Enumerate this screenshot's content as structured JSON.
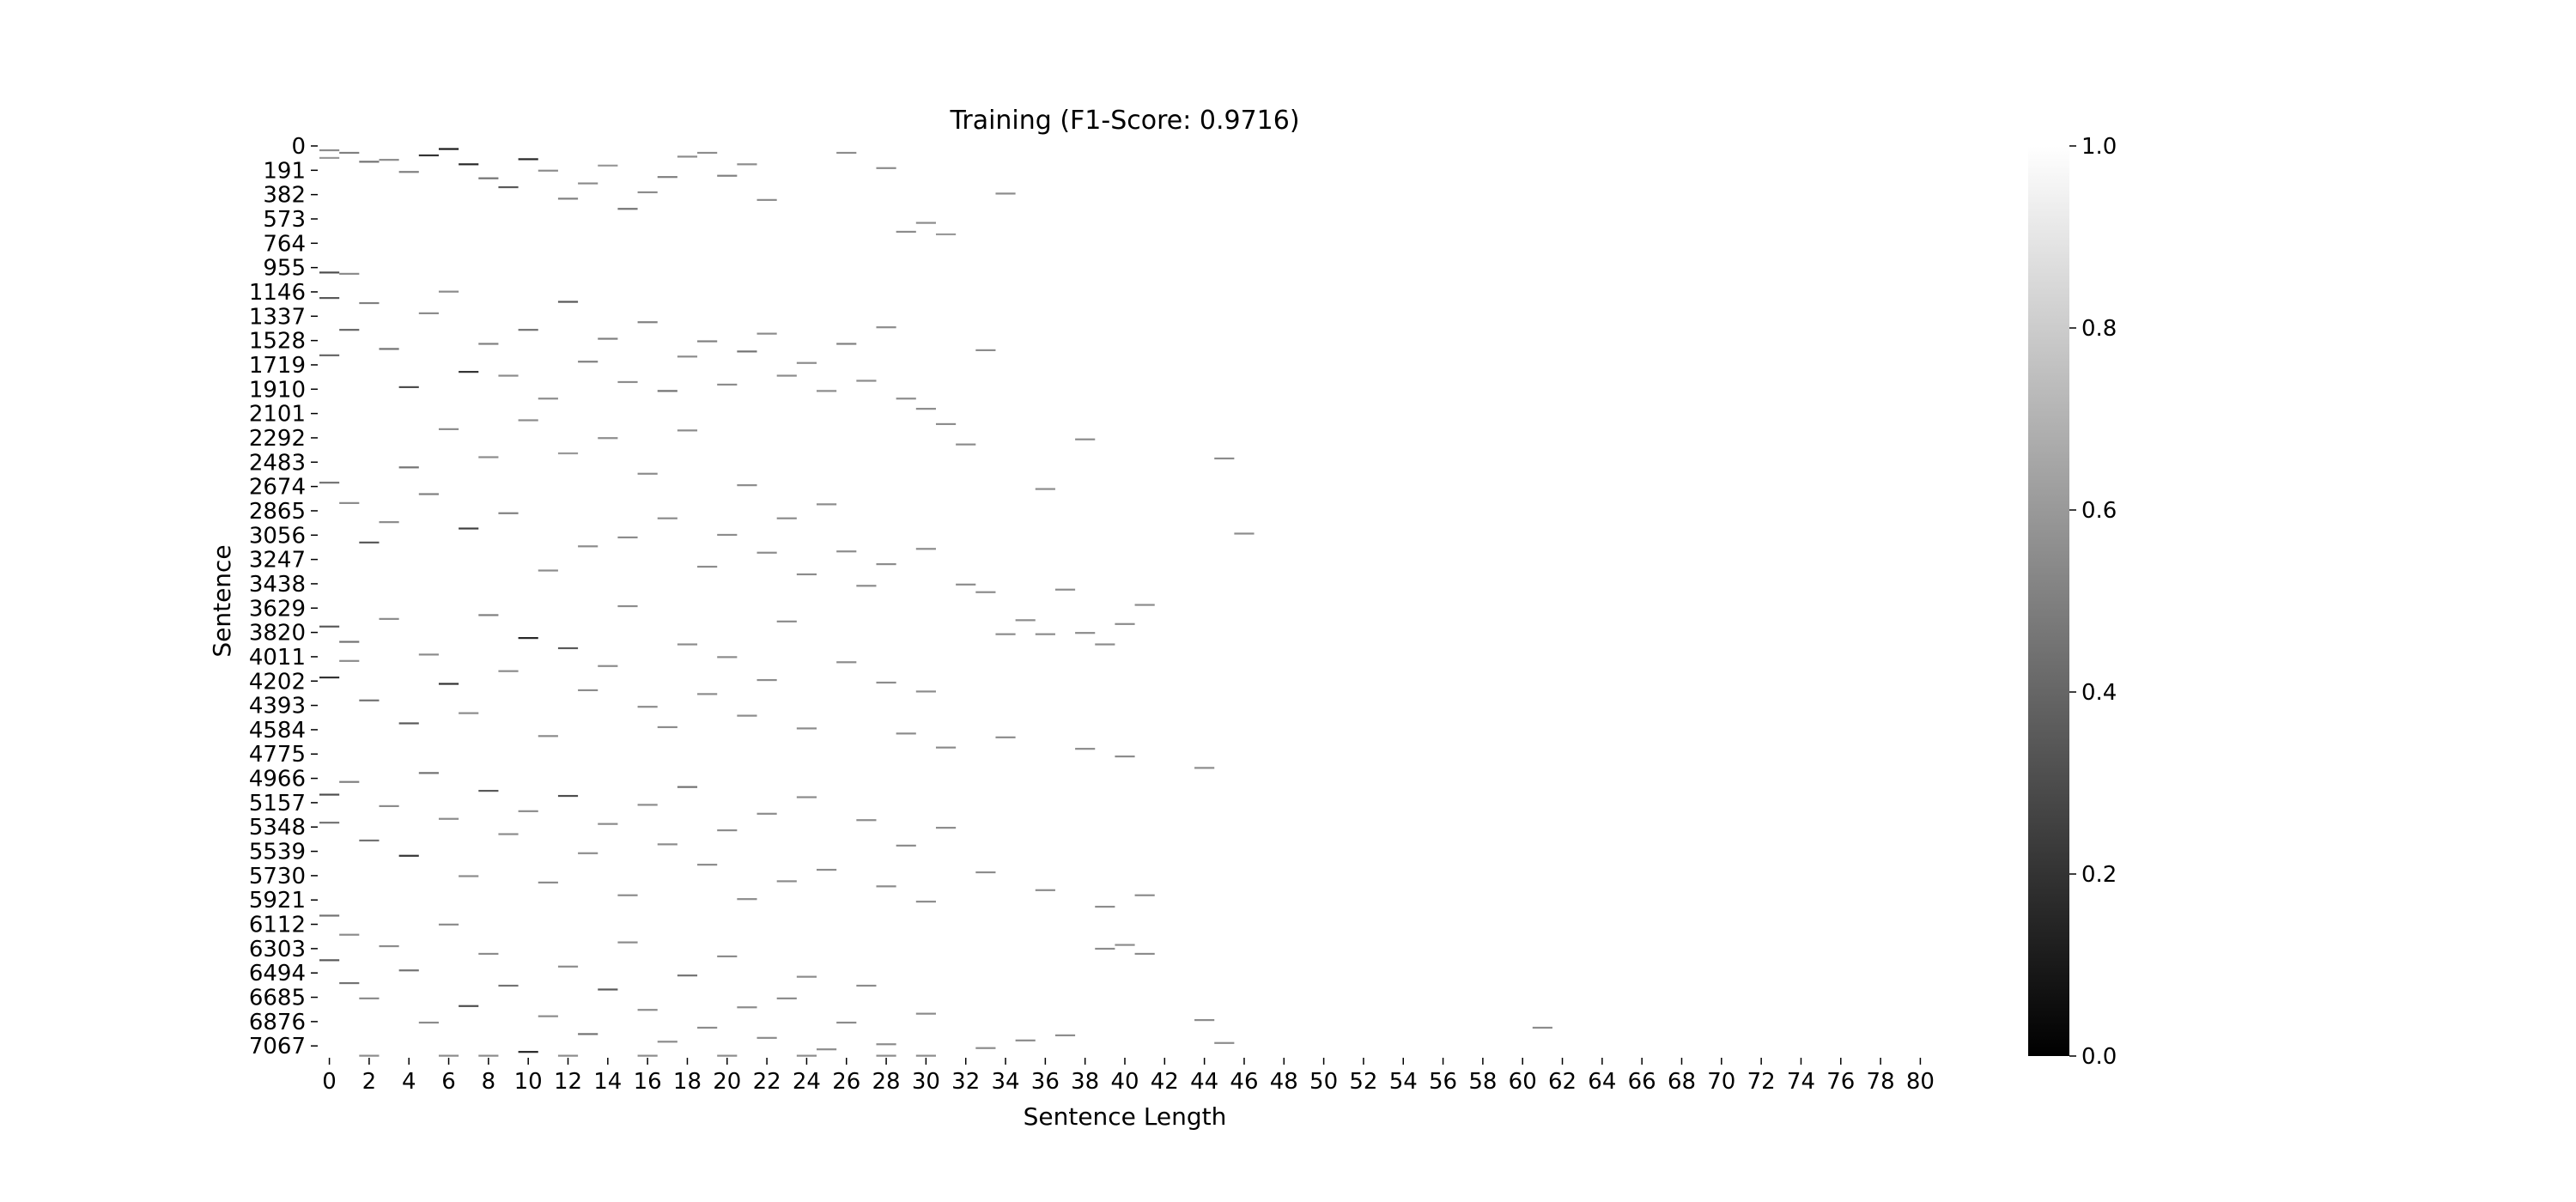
{
  "chart_data": {
    "type": "heatmap",
    "title": "Training (F1-Score: 0.9716)",
    "xlabel": "Sentence Length",
    "ylabel": "Sentence",
    "x_tick_labels": [
      "0",
      "2",
      "4",
      "6",
      "8",
      "10",
      "12",
      "14",
      "16",
      "18",
      "20",
      "22",
      "24",
      "26",
      "28",
      "30",
      "32",
      "34",
      "36",
      "38",
      "40",
      "42",
      "44",
      "46",
      "48",
      "50",
      "52",
      "54",
      "56",
      "58",
      "60",
      "62",
      "64",
      "66",
      "68",
      "70",
      "72",
      "74",
      "76",
      "78",
      "80"
    ],
    "y_tick_labels": [
      "0",
      "191",
      "382",
      "573",
      "764",
      "955",
      "1146",
      "1337",
      "1528",
      "1719",
      "1910",
      "2101",
      "2292",
      "2483",
      "2674",
      "2865",
      "3056",
      "3247",
      "3438",
      "3629",
      "3820",
      "4011",
      "4202",
      "4393",
      "4584",
      "4775",
      "4966",
      "5157",
      "5348",
      "5539",
      "5730",
      "5921",
      "6112",
      "6303",
      "6494",
      "6685",
      "6876",
      "7067"
    ],
    "xlim": [
      0,
      81
    ],
    "ylim": [
      0,
      7160
    ],
    "colorbar": {
      "ticks": [
        "0.0",
        "0.2",
        "0.4",
        "0.6",
        "0.8",
        "1.0"
      ],
      "range": [
        0.0,
        1.0
      ],
      "colormap": "gray",
      "low_color": "#000000",
      "high_color": "#ffffff"
    },
    "background_value": 1.0,
    "grid": false,
    "cells": [
      [
        0,
        40,
        0.55
      ],
      [
        1,
        60,
        0.5
      ],
      [
        0,
        100,
        0.6
      ],
      [
        2,
        130,
        0.45
      ],
      [
        3,
        115,
        0.55
      ],
      [
        4,
        210,
        0.5
      ],
      [
        5,
        80,
        0.2
      ],
      [
        6,
        30,
        0.1
      ],
      [
        7,
        150,
        0.15
      ],
      [
        8,
        260,
        0.45
      ],
      [
        9,
        330,
        0.35
      ],
      [
        10,
        110,
        0.15
      ],
      [
        11,
        200,
        0.55
      ],
      [
        12,
        420,
        0.5
      ],
      [
        13,
        300,
        0.55
      ],
      [
        14,
        160,
        0.6
      ],
      [
        15,
        500,
        0.45
      ],
      [
        16,
        370,
        0.55
      ],
      [
        17,
        250,
        0.5
      ],
      [
        18,
        90,
        0.55
      ],
      [
        19,
        60,
        0.55
      ],
      [
        20,
        240,
        0.5
      ],
      [
        21,
        150,
        0.55
      ],
      [
        22,
        430,
        0.55
      ],
      [
        26,
        60,
        0.55
      ],
      [
        28,
        180,
        0.55
      ],
      [
        29,
        680,
        0.55
      ],
      [
        30,
        610,
        0.55
      ],
      [
        31,
        700,
        0.6
      ],
      [
        34,
        380,
        0.55
      ],
      [
        0,
        1000,
        0.3
      ],
      [
        0,
        1200,
        0.35
      ],
      [
        0,
        1650,
        0.4
      ],
      [
        1,
        1450,
        0.4
      ],
      [
        1,
        1010,
        0.55
      ],
      [
        2,
        1240,
        0.5
      ],
      [
        3,
        1600,
        0.45
      ],
      [
        4,
        1900,
        0.3
      ],
      [
        5,
        1320,
        0.55
      ],
      [
        6,
        1150,
        0.55
      ],
      [
        7,
        1780,
        0.2
      ],
      [
        8,
        1560,
        0.5
      ],
      [
        9,
        1810,
        0.55
      ],
      [
        10,
        1450,
        0.45
      ],
      [
        11,
        1990,
        0.55
      ],
      [
        12,
        1230,
        0.35
      ],
      [
        13,
        1700,
        0.5
      ],
      [
        14,
        1520,
        0.5
      ],
      [
        15,
        1860,
        0.55
      ],
      [
        16,
        1390,
        0.5
      ],
      [
        17,
        1930,
        0.45
      ],
      [
        18,
        1660,
        0.55
      ],
      [
        19,
        1540,
        0.5
      ],
      [
        20,
        1880,
        0.55
      ],
      [
        21,
        1620,
        0.45
      ],
      [
        22,
        1480,
        0.55
      ],
      [
        23,
        1810,
        0.55
      ],
      [
        24,
        1710,
        0.55
      ],
      [
        25,
        1930,
        0.55
      ],
      [
        26,
        1560,
        0.5
      ],
      [
        27,
        1850,
        0.55
      ],
      [
        28,
        1430,
        0.55
      ],
      [
        29,
        1990,
        0.55
      ],
      [
        30,
        2070,
        0.55
      ],
      [
        31,
        2190,
        0.55
      ],
      [
        32,
        2350,
        0.55
      ],
      [
        33,
        1610,
        0.55
      ],
      [
        36,
        2700,
        0.55
      ],
      [
        38,
        2310,
        0.55
      ],
      [
        0,
        2650,
        0.45
      ],
      [
        1,
        2810,
        0.55
      ],
      [
        2,
        3120,
        0.35
      ],
      [
        3,
        2960,
        0.55
      ],
      [
        4,
        2530,
        0.45
      ],
      [
        5,
        2740,
        0.5
      ],
      [
        6,
        2230,
        0.55
      ],
      [
        7,
        3010,
        0.25
      ],
      [
        8,
        2450,
        0.55
      ],
      [
        9,
        2890,
        0.5
      ],
      [
        10,
        2160,
        0.55
      ],
      [
        11,
        3340,
        0.55
      ],
      [
        12,
        2420,
        0.6
      ],
      [
        13,
        3150,
        0.55
      ],
      [
        14,
        2300,
        0.55
      ],
      [
        15,
        3080,
        0.55
      ],
      [
        16,
        2580,
        0.55
      ],
      [
        17,
        2930,
        0.55
      ],
      [
        18,
        2240,
        0.55
      ],
      [
        19,
        3310,
        0.55
      ],
      [
        20,
        3060,
        0.55
      ],
      [
        21,
        2670,
        0.55
      ],
      [
        22,
        3200,
        0.55
      ],
      [
        23,
        2930,
        0.55
      ],
      [
        24,
        3370,
        0.55
      ],
      [
        25,
        2820,
        0.55
      ],
      [
        26,
        3190,
        0.55
      ],
      [
        27,
        3460,
        0.55
      ],
      [
        28,
        3290,
        0.55
      ],
      [
        30,
        3170,
        0.55
      ],
      [
        32,
        3450,
        0.55
      ],
      [
        33,
        3510,
        0.55
      ],
      [
        34,
        3840,
        0.55
      ],
      [
        35,
        3730,
        0.55
      ],
      [
        36,
        3840,
        0.55
      ],
      [
        37,
        3490,
        0.55
      ],
      [
        38,
        3830,
        0.55
      ],
      [
        39,
        3920,
        0.55
      ],
      [
        40,
        3760,
        0.55
      ],
      [
        41,
        3610,
        0.55
      ],
      [
        45,
        2460,
        0.55
      ],
      [
        46,
        3050,
        0.55
      ],
      [
        0,
        3780,
        0.35
      ],
      [
        0,
        4180,
        0.2
      ],
      [
        1,
        3900,
        0.45
      ],
      [
        1,
        4050,
        0.55
      ],
      [
        2,
        4360,
        0.45
      ],
      [
        3,
        3720,
        0.55
      ],
      [
        4,
        4540,
        0.35
      ],
      [
        5,
        4000,
        0.55
      ],
      [
        6,
        4230,
        0.2
      ],
      [
        7,
        4460,
        0.55
      ],
      [
        8,
        3690,
        0.5
      ],
      [
        9,
        4130,
        0.55
      ],
      [
        10,
        3870,
        0.15
      ],
      [
        11,
        4640,
        0.55
      ],
      [
        12,
        3950,
        0.35
      ],
      [
        13,
        4280,
        0.55
      ],
      [
        14,
        4090,
        0.55
      ],
      [
        15,
        3620,
        0.55
      ],
      [
        16,
        4410,
        0.55
      ],
      [
        17,
        4570,
        0.55
      ],
      [
        18,
        3920,
        0.55
      ],
      [
        19,
        4310,
        0.55
      ],
      [
        20,
        4020,
        0.55
      ],
      [
        21,
        4480,
        0.55
      ],
      [
        22,
        4200,
        0.55
      ],
      [
        23,
        3740,
        0.55
      ],
      [
        24,
        4580,
        0.55
      ],
      [
        26,
        4060,
        0.55
      ],
      [
        28,
        4220,
        0.55
      ],
      [
        29,
        4620,
        0.55
      ],
      [
        30,
        4290,
        0.55
      ],
      [
        31,
        4730,
        0.55
      ],
      [
        34,
        4650,
        0.55
      ],
      [
        38,
        4740,
        0.55
      ],
      [
        40,
        4800,
        0.55
      ],
      [
        44,
        4890,
        0.55
      ],
      [
        0,
        5100,
        0.3
      ],
      [
        0,
        5320,
        0.45
      ],
      [
        1,
        5000,
        0.5
      ],
      [
        2,
        5460,
        0.45
      ],
      [
        3,
        5190,
        0.55
      ],
      [
        4,
        5580,
        0.2
      ],
      [
        5,
        4930,
        0.45
      ],
      [
        6,
        5290,
        0.55
      ],
      [
        7,
        5740,
        0.55
      ],
      [
        8,
        5070,
        0.35
      ],
      [
        9,
        5410,
        0.55
      ],
      [
        10,
        5230,
        0.55
      ],
      [
        11,
        5790,
        0.55
      ],
      [
        12,
        5110,
        0.3
      ],
      [
        13,
        5560,
        0.55
      ],
      [
        14,
        5330,
        0.55
      ],
      [
        15,
        5890,
        0.55
      ],
      [
        16,
        5180,
        0.55
      ],
      [
        17,
        5490,
        0.55
      ],
      [
        18,
        5040,
        0.45
      ],
      [
        19,
        5650,
        0.55
      ],
      [
        20,
        5380,
        0.55
      ],
      [
        21,
        5920,
        0.55
      ],
      [
        22,
        5250,
        0.55
      ],
      [
        23,
        5780,
        0.55
      ],
      [
        24,
        5120,
        0.55
      ],
      [
        25,
        5690,
        0.55
      ],
      [
        27,
        5300,
        0.55
      ],
      [
        28,
        5820,
        0.55
      ],
      [
        29,
        5500,
        0.55
      ],
      [
        30,
        5940,
        0.55
      ],
      [
        31,
        5360,
        0.55
      ],
      [
        33,
        5710,
        0.55
      ],
      [
        36,
        5850,
        0.55
      ],
      [
        39,
        5980,
        0.55
      ],
      [
        41,
        5890,
        0.55
      ],
      [
        0,
        6050,
        0.45
      ],
      [
        0,
        6400,
        0.35
      ],
      [
        1,
        6200,
        0.55
      ],
      [
        1,
        6580,
        0.45
      ],
      [
        2,
        6700,
        0.55
      ],
      [
        3,
        6290,
        0.55
      ],
      [
        4,
        6480,
        0.45
      ],
      [
        5,
        6890,
        0.55
      ],
      [
        6,
        6120,
        0.55
      ],
      [
        7,
        6760,
        0.3
      ],
      [
        8,
        6350,
        0.55
      ],
      [
        9,
        6600,
        0.45
      ],
      [
        10,
        7120,
        0.15
      ],
      [
        11,
        6840,
        0.55
      ],
      [
        12,
        6450,
        0.55
      ],
      [
        13,
        6980,
        0.45
      ],
      [
        14,
        6630,
        0.35
      ],
      [
        15,
        6260,
        0.55
      ],
      [
        16,
        6790,
        0.55
      ],
      [
        17,
        7040,
        0.55
      ],
      [
        18,
        6520,
        0.45
      ],
      [
        19,
        6930,
        0.55
      ],
      [
        20,
        6370,
        0.55
      ],
      [
        21,
        6770,
        0.55
      ],
      [
        22,
        7010,
        0.55
      ],
      [
        23,
        6700,
        0.55
      ],
      [
        24,
        6530,
        0.55
      ],
      [
        25,
        7100,
        0.55
      ],
      [
        26,
        6890,
        0.55
      ],
      [
        27,
        6600,
        0.55
      ],
      [
        28,
        7060,
        0.55
      ],
      [
        30,
        6820,
        0.55
      ],
      [
        33,
        7090,
        0.55
      ],
      [
        35,
        7030,
        0.55
      ],
      [
        37,
        6990,
        0.55
      ],
      [
        39,
        6310,
        0.55
      ],
      [
        40,
        6280,
        0.55
      ],
      [
        41,
        6350,
        0.55
      ],
      [
        44,
        6870,
        0.55
      ],
      [
        45,
        7050,
        0.55
      ],
      [
        61,
        6930,
        0.55
      ],
      [
        30,
        7150,
        0.55
      ],
      [
        2,
        7150,
        0.55
      ],
      [
        6,
        7150,
        0.55
      ],
      [
        8,
        7150,
        0.55
      ],
      [
        12,
        7150,
        0.55
      ],
      [
        16,
        7150,
        0.55
      ],
      [
        20,
        7150,
        0.55
      ],
      [
        24,
        7150,
        0.55
      ],
      [
        28,
        7150,
        0.55
      ]
    ]
  }
}
